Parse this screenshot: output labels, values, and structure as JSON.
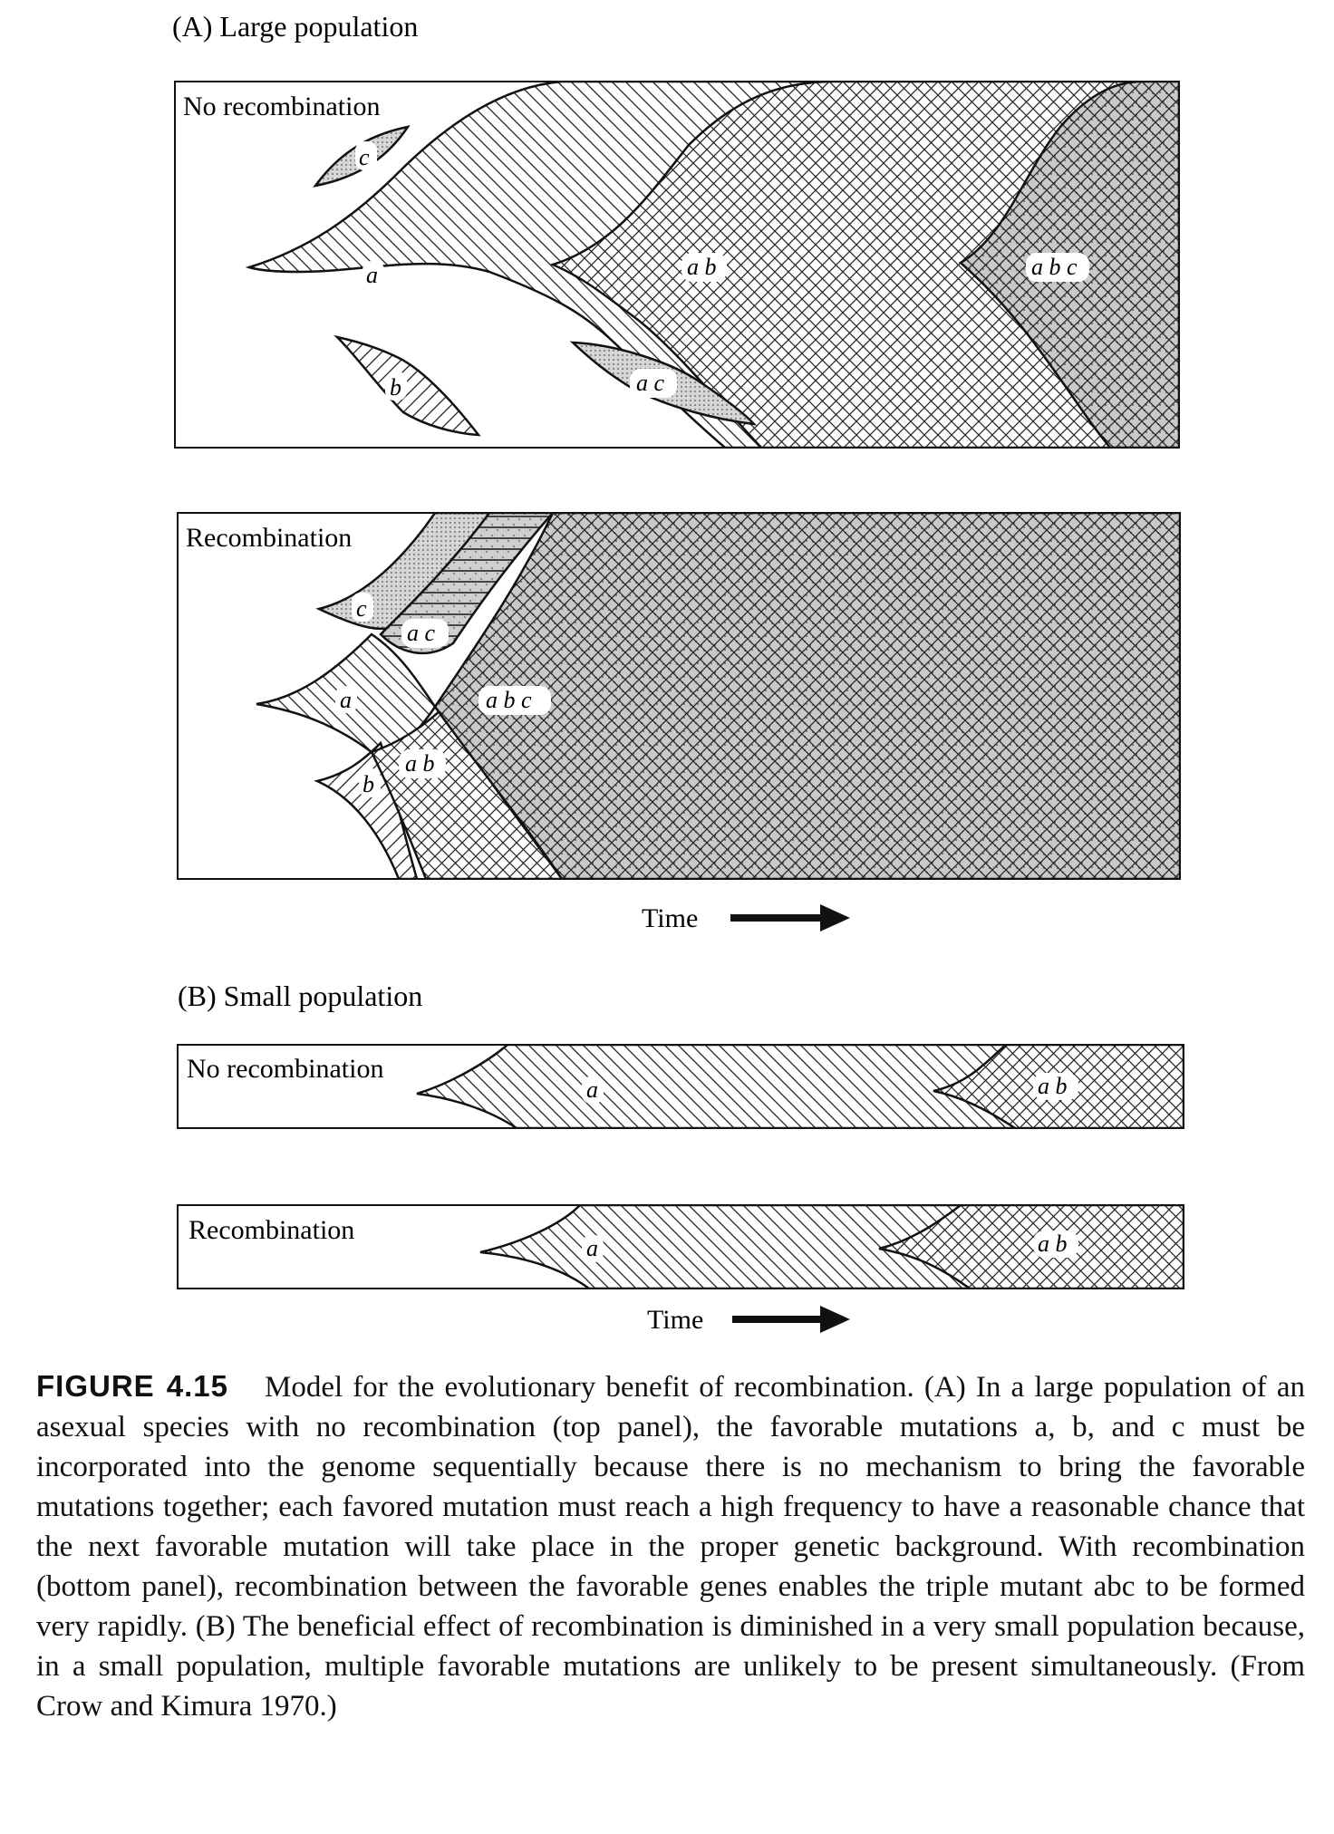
{
  "panelA": {
    "heading": "(A) Large population",
    "top": {
      "label": "No recombination",
      "regions": {
        "c": "c",
        "a": "a",
        "b": "b",
        "ab": "a b",
        "ac": "a c",
        "abc": "a b c"
      }
    },
    "bottom": {
      "label": "Recombination",
      "regions": {
        "c": "c",
        "ac": "a c",
        "a": "a",
        "abc": "a b c",
        "ab": "a b",
        "b": "b"
      }
    },
    "time_label": "Time"
  },
  "panelB": {
    "heading": "(B) Small population",
    "top": {
      "label": "No recombination",
      "regions": {
        "a": "a",
        "ab": "a b"
      }
    },
    "bottom": {
      "label": "Recombination",
      "regions": {
        "a": "a",
        "ab": "a b"
      }
    },
    "time_label": "Time"
  },
  "caption": {
    "title": "FIGURE 4.15",
    "text": "Model for the evolutionary benefit of recombination. (A) In a large population of an asexual species with no recombination (top panel), the favorable mutations a, b, and c must be incorporated into the genome sequentially because there is no mechanism to bring the favorable mutations together; each favored mutation must reach a high frequency to have a reasonable chance that the next favorable mutation will take place in the proper genetic background. With recombination (bottom panel), recombination between the favorable genes enables the triple mutant abc to be formed very rapidly. (B) The beneficial effect of recombination is diminished in a very small population because, in a small population, multiple favorable mutations are unlikely to be present simultaneously. (From Crow and Kimura 1970.)"
  }
}
